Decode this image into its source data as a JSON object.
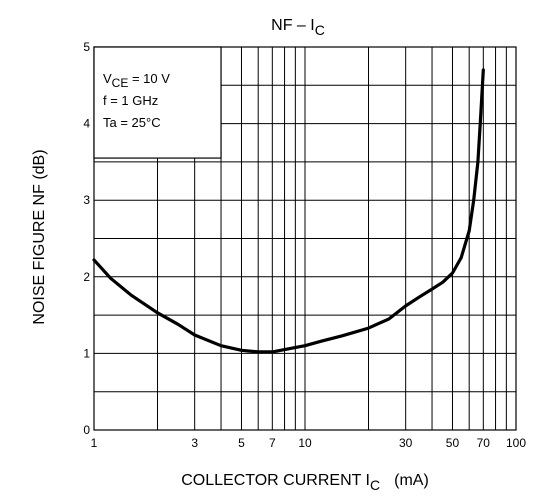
{
  "chart_data": {
    "type": "line",
    "title": "NF – I",
    "title_sub": "C",
    "xlabel": "COLLECTOR CURRENT   I",
    "xlabel_sub": "C",
    "xlabel_unit": "(mA)",
    "ylabel": "NOISE FIGURE   NF   (dB)",
    "x_scale": "log",
    "xlim": [
      1,
      100
    ],
    "ylim": [
      0,
      5
    ],
    "x_ticks": [
      {
        "value": 1,
        "label": "1"
      },
      {
        "value": 3,
        "label": "3"
      },
      {
        "value": 5,
        "label": "5"
      },
      {
        "value": 7,
        "label": "7"
      },
      {
        "value": 10,
        "label": "10"
      },
      {
        "value": 30,
        "label": "30"
      },
      {
        "value": 50,
        "label": "50"
      },
      {
        "value": 70,
        "label": "70"
      },
      {
        "value": 100,
        "label": "100"
      }
    ],
    "y_ticks": [
      0,
      1,
      2,
      3,
      4,
      5
    ],
    "y_minor_step": 0.5,
    "grid": true,
    "conditions": [
      {
        "main": "V",
        "sub": "CE",
        "rest": " = 10 V"
      },
      {
        "main": "f = 1 GHz",
        "sub": "",
        "rest": ""
      },
      {
        "main": "Ta = 25°C",
        "sub": "",
        "rest": ""
      }
    ],
    "series": [
      {
        "x": [
          1,
          1.2,
          1.5,
          2,
          2.5,
          3,
          4,
          5,
          6,
          7,
          8,
          10,
          12,
          15,
          20,
          25,
          30,
          35,
          40,
          45,
          50,
          55,
          60,
          63,
          66,
          68,
          70
        ],
        "y": [
          2.22,
          1.98,
          1.76,
          1.53,
          1.38,
          1.24,
          1.1,
          1.04,
          1.02,
          1.02,
          1.05,
          1.1,
          1.16,
          1.23,
          1.33,
          1.45,
          1.62,
          1.74,
          1.84,
          1.93,
          2.05,
          2.25,
          2.6,
          3.0,
          3.5,
          4.1,
          4.7
        ]
      }
    ]
  }
}
